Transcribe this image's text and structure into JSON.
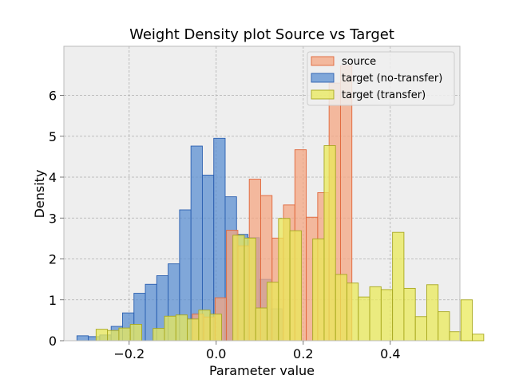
{
  "chart_data": {
    "type": "histogram",
    "title": "Weight Density plot Source vs Target",
    "xlabel": "Parameter value",
    "ylabel": "Density",
    "xlim": [
      -0.35,
      0.56
    ],
    "ylim": [
      0,
      7.2
    ],
    "xticks": [
      -0.2,
      0.0,
      0.2,
      0.4
    ],
    "xtick_labels": [
      "−0.2",
      "0.0",
      "0.2",
      "0.4"
    ],
    "yticks": [
      0,
      1,
      2,
      3,
      4,
      5,
      6
    ],
    "ytick_labels": [
      "0",
      "1",
      "2",
      "3",
      "4",
      "5",
      "6"
    ],
    "grid": true,
    "legend_position": "upper right",
    "series": [
      {
        "name": "target (no-transfer)",
        "color": "#5b8fd2",
        "edge": "#2a5fb0",
        "start": -0.32,
        "bin_width": 0.0262,
        "values": [
          0.12,
          0.1,
          0.14,
          0.35,
          0.68,
          1.16,
          1.38,
          1.59,
          1.88,
          3.2,
          4.76,
          4.05,
          4.95,
          3.52,
          2.6,
          2.52,
          1.5,
          0.78
        ]
      },
      {
        "name": "source",
        "color": "#f4a582",
        "edge": "#e0663a",
        "start": -0.055,
        "bin_width": 0.0262,
        "values": [
          0.65,
          0.58,
          1.05,
          2.7,
          2.32,
          3.95,
          3.55,
          2.51,
          3.32,
          4.67,
          3.02,
          3.62,
          6.3,
          6.72
        ]
      },
      {
        "name": "target (transfer)",
        "color": "#eaea5a",
        "edge": "#a8a820",
        "start": -0.276,
        "bin_width": 0.0262,
        "values": [
          0.28,
          0.25,
          0.31,
          0.4,
          0.0,
          0.3,
          0.6,
          0.63,
          0.53,
          0.75,
          0.65,
          0.0,
          2.58,
          2.51,
          0.8,
          1.43,
          2.99,
          2.69,
          0.0,
          2.49,
          4.77,
          1.62,
          1.41,
          1.07,
          1.32,
          1.25,
          2.65,
          1.28,
          0.59,
          1.37,
          0.71,
          0.22,
          1.0,
          0.16
        ]
      }
    ]
  }
}
